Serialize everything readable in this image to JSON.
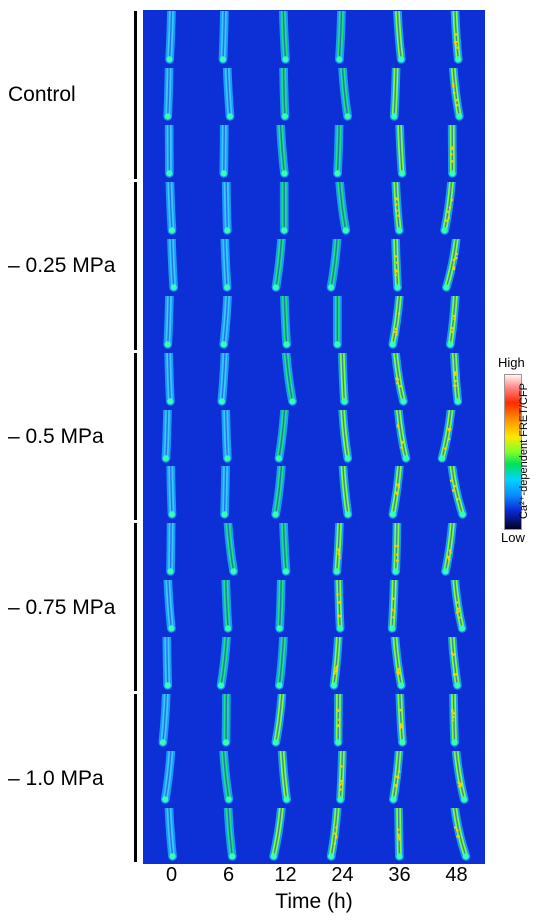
{
  "figure": {
    "groups": [
      {
        "label": "Control",
        "timepoints": [
          "0",
          "6",
          "12",
          "24",
          "36",
          "48"
        ]
      },
      {
        "label": "– 0.25 MPa",
        "timepoints": [
          "0",
          "6",
          "12",
          "24",
          "36",
          "48"
        ]
      },
      {
        "label": "– 0.5 MPa",
        "timepoints": [
          "0",
          "6",
          "12",
          "24",
          "36",
          "48"
        ]
      },
      {
        "label": "– 0.75 MPa",
        "timepoints": [
          "0",
          "6",
          "12",
          "24",
          "36",
          "48"
        ]
      },
      {
        "label": "– 1.0 MPa",
        "timepoints": [
          "0",
          "6",
          "12",
          "24",
          "36",
          "48"
        ]
      }
    ],
    "replicates_per_group": 3,
    "x_axis": {
      "title": "Time (h)",
      "ticks": [
        "0",
        "6",
        "12",
        "24",
        "36",
        "48"
      ]
    },
    "colorbar": {
      "high_label": "High",
      "low_label": "Low",
      "title": "Ca²⁺-dependent FRET/CFP",
      "colors": [
        "#fff5f5",
        "#ff2a00",
        "#ffe600",
        "#00e05a",
        "#00d4ff",
        "#0a2ad6",
        "#000022"
      ]
    },
    "background_color": "#0d30d6"
  }
}
